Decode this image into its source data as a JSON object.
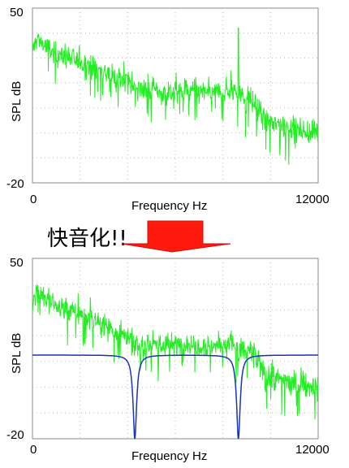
{
  "banner_text": "快音化!!",
  "colors": {
    "spectrum": "#22ee22",
    "filter": "#1a33bb",
    "arrow": "#ff1a10",
    "axis": "#888888",
    "grid": "#bbbbbb"
  },
  "chart_data": [
    {
      "type": "line",
      "xlabel": "Frequency Hz",
      "ylabel": "SPL dB",
      "xlim": [
        0,
        12000
      ],
      "ylim": [
        -20,
        50
      ],
      "x_ticks": [
        "0",
        "12000"
      ],
      "y_ticks": [
        "50",
        "-20"
      ],
      "grid": "dotted",
      "series": [
        {
          "type": "noise-spectrum",
          "color": "#22ee22",
          "x": [
            0,
            200,
            700,
            1500,
            2500,
            3500,
            4500,
            5500,
            6500,
            7500,
            8500,
            8800,
            9200,
            9800,
            10500,
            11200,
            12000
          ],
          "y": [
            33,
            38,
            33,
            30,
            27,
            22,
            18,
            16,
            17,
            16,
            17,
            15,
            13,
            5,
            3,
            1,
            0
          ],
          "peaks": [
            {
              "x": 8650,
              "y": 42
            }
          ]
        }
      ]
    },
    {
      "type": "line",
      "xlabel": "Frequency Hz",
      "ylabel": "SPL dB",
      "xlim": [
        0,
        12000
      ],
      "ylim": [
        -20,
        50
      ],
      "x_ticks": [
        "0",
        "12000"
      ],
      "y_ticks": [
        "50",
        "-20"
      ],
      "grid": "dotted",
      "series": [
        {
          "type": "noise-spectrum",
          "color": "#22ee22",
          "x": [
            0,
            200,
            700,
            1500,
            2500,
            3500,
            4500,
            5500,
            6500,
            7500,
            8500,
            8800,
            9200,
            9800,
            10500,
            11200,
            12000
          ],
          "y": [
            33,
            38,
            33,
            30,
            27,
            22,
            18,
            16,
            17,
            16,
            17,
            15,
            13,
            5,
            3,
            1,
            0
          ],
          "notches": [
            {
              "x": 4300,
              "width": 600
            },
            {
              "x": 8650,
              "width": 500
            }
          ]
        },
        {
          "type": "notch-filter",
          "color": "#1a33bb",
          "level": 12.5,
          "notches": [
            {
              "x": 4300,
              "depth": -20
            },
            {
              "x": 8650,
              "depth": -20
            }
          ]
        }
      ]
    }
  ]
}
